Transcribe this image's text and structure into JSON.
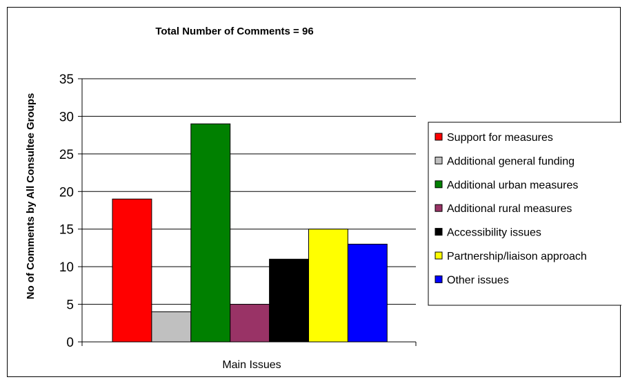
{
  "chart_data": {
    "type": "bar",
    "title": "Total Number of Comments = 96",
    "ylabel": "No of Comments by All Consultee Groups",
    "xlabel": "Main Issues",
    "ylim": [
      0,
      35
    ],
    "yticks": [
      0,
      5,
      10,
      15,
      20,
      25,
      30,
      35
    ],
    "grid": true,
    "legend_position": "right",
    "series": [
      {
        "name": "Support for measures",
        "value": 19,
        "color": "#ff0000"
      },
      {
        "name": "Additional general funding",
        "value": 4,
        "color": "#c0c0c0"
      },
      {
        "name": "Additional urban measures",
        "value": 29,
        "color": "#008000"
      },
      {
        "name": "Additional rural measures",
        "value": 5,
        "color": "#993366"
      },
      {
        "name": "Accessibility issues",
        "value": 11,
        "color": "#000000"
      },
      {
        "name": "Partnership/liaison approach",
        "value": 15,
        "color": "#ffff00"
      },
      {
        "name": "Other issues",
        "value": 13,
        "color": "#0000ff"
      }
    ]
  }
}
